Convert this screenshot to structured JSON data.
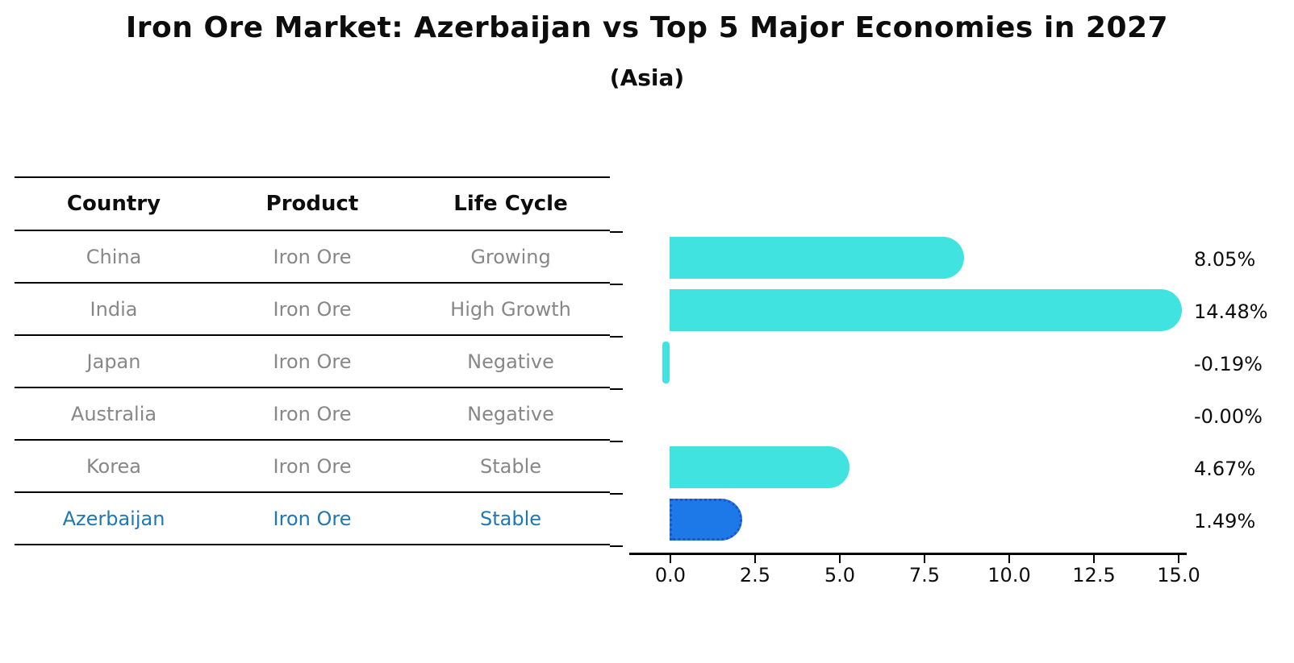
{
  "title": "Iron Ore Market: Azerbaijan vs Top 5 Major Economies in 2027",
  "subtitle": "(Asia)",
  "table": {
    "headers": [
      "Country",
      "Product",
      "Life Cycle"
    ],
    "rows": [
      {
        "country": "China",
        "product": "Iron Ore",
        "life_cycle": "Growing",
        "highlight": false
      },
      {
        "country": "India",
        "product": "Iron Ore",
        "life_cycle": "High Growth",
        "highlight": false
      },
      {
        "country": "Japan",
        "product": "Iron Ore",
        "life_cycle": "Negative",
        "highlight": false
      },
      {
        "country": "Australia",
        "product": "Iron Ore",
        "life_cycle": "Negative",
        "highlight": false
      },
      {
        "country": "Korea",
        "product": "Iron Ore",
        "life_cycle": "Stable",
        "highlight": false
      },
      {
        "country": "Azerbaijan",
        "product": "Iron Ore",
        "life_cycle": "Stable",
        "highlight": true
      }
    ]
  },
  "chart_data": {
    "type": "bar",
    "orientation": "horizontal",
    "categories": [
      "China",
      "India",
      "Japan",
      "Australia",
      "Korea",
      "Azerbaijan"
    ],
    "values": [
      8.05,
      14.48,
      -0.19,
      0.0,
      4.67,
      1.49
    ],
    "value_labels": [
      "8.05%",
      "14.48%",
      "-0.19%",
      "-0.00%",
      "4.67%",
      "1.49%"
    ],
    "x_ticks": [
      "0.0",
      "2.5",
      "5.0",
      "7.5",
      "10.0",
      "12.5",
      "15.0"
    ],
    "x_tick_values": [
      0.0,
      2.5,
      5.0,
      7.5,
      10.0,
      12.5,
      15.0
    ],
    "xlim": [
      -1.2,
      15.3
    ],
    "grid": false,
    "legend": "none",
    "highlighted_category": "Azerbaijan"
  },
  "colors": {
    "bar": "#40e3df",
    "highlight_bar": "#1e79e8",
    "highlight_bar_border": "#1a55cc",
    "highlight_text": "#1f77b4",
    "row_text": "#878787",
    "text": "#0d0d0d"
  }
}
